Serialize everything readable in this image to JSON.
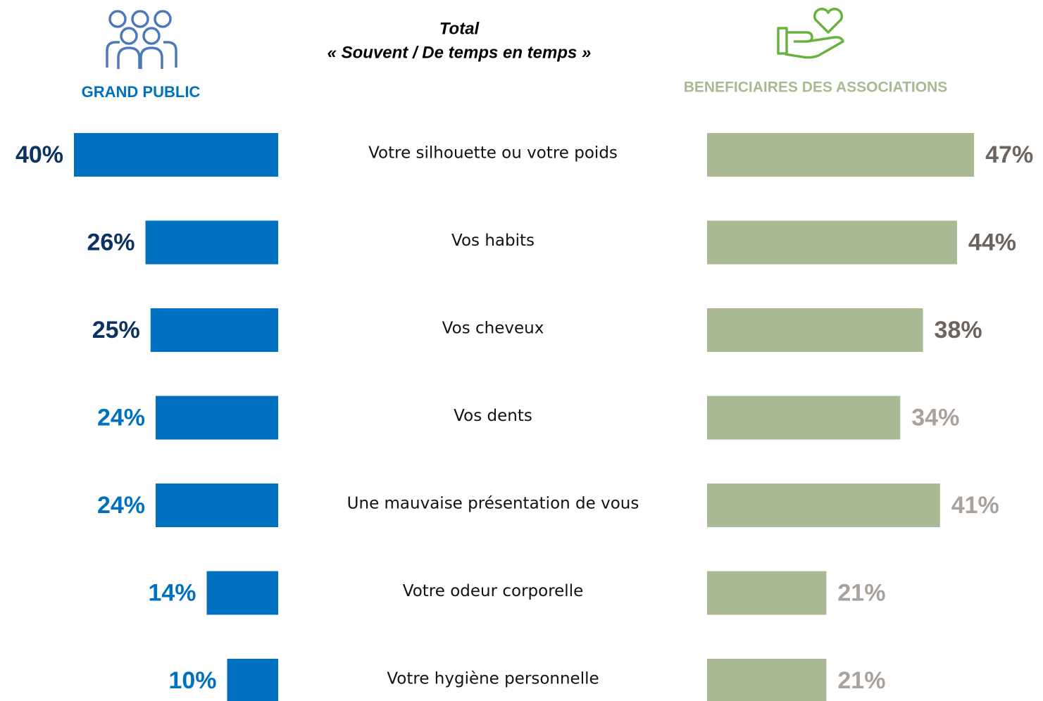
{
  "chart_data": {
    "type": "butterfly-bar",
    "title": "Total",
    "subtitle": "« Souvent / De temps en temps »",
    "categories": [
      "Votre silhouette ou votre poids",
      "Vos habits",
      "Vos cheveux",
      "Vos dents",
      "Une mauvaise présentation de vous",
      "Votre odeur corporelle",
      "Votre hygiène personnelle"
    ],
    "xlim": [
      0,
      60
    ],
    "series": [
      {
        "name": "GRAND PUBLIC",
        "color": "#0070c0",
        "name_color": "#0070c0",
        "values": [
          40,
          26,
          25,
          24,
          24,
          14,
          10
        ],
        "value_labels": [
          "40%",
          "26%",
          "25%",
          "24%",
          "24%",
          "14%",
          "10%"
        ],
        "label_colors": [
          "#0b3260",
          "#0b3260",
          "#0b3260",
          "#0070c0",
          "#0070c0",
          "#0070c0",
          "#0070c0"
        ]
      },
      {
        "name": "BENEFICIAIRES DES ASSOCIATIONS",
        "color": "#a9b994",
        "name_color": "#a9b994",
        "values": [
          47,
          44,
          38,
          34,
          41,
          21,
          21
        ],
        "value_labels": [
          "47%",
          "44%",
          "38%",
          "34%",
          "41%",
          "21%",
          "21%"
        ],
        "label_colors": [
          "#6e645e",
          "#6e645e",
          "#6e645e",
          "#aaa19b",
          "#aaa19b",
          "#aaa19b",
          "#aaa19b"
        ]
      }
    ]
  }
}
